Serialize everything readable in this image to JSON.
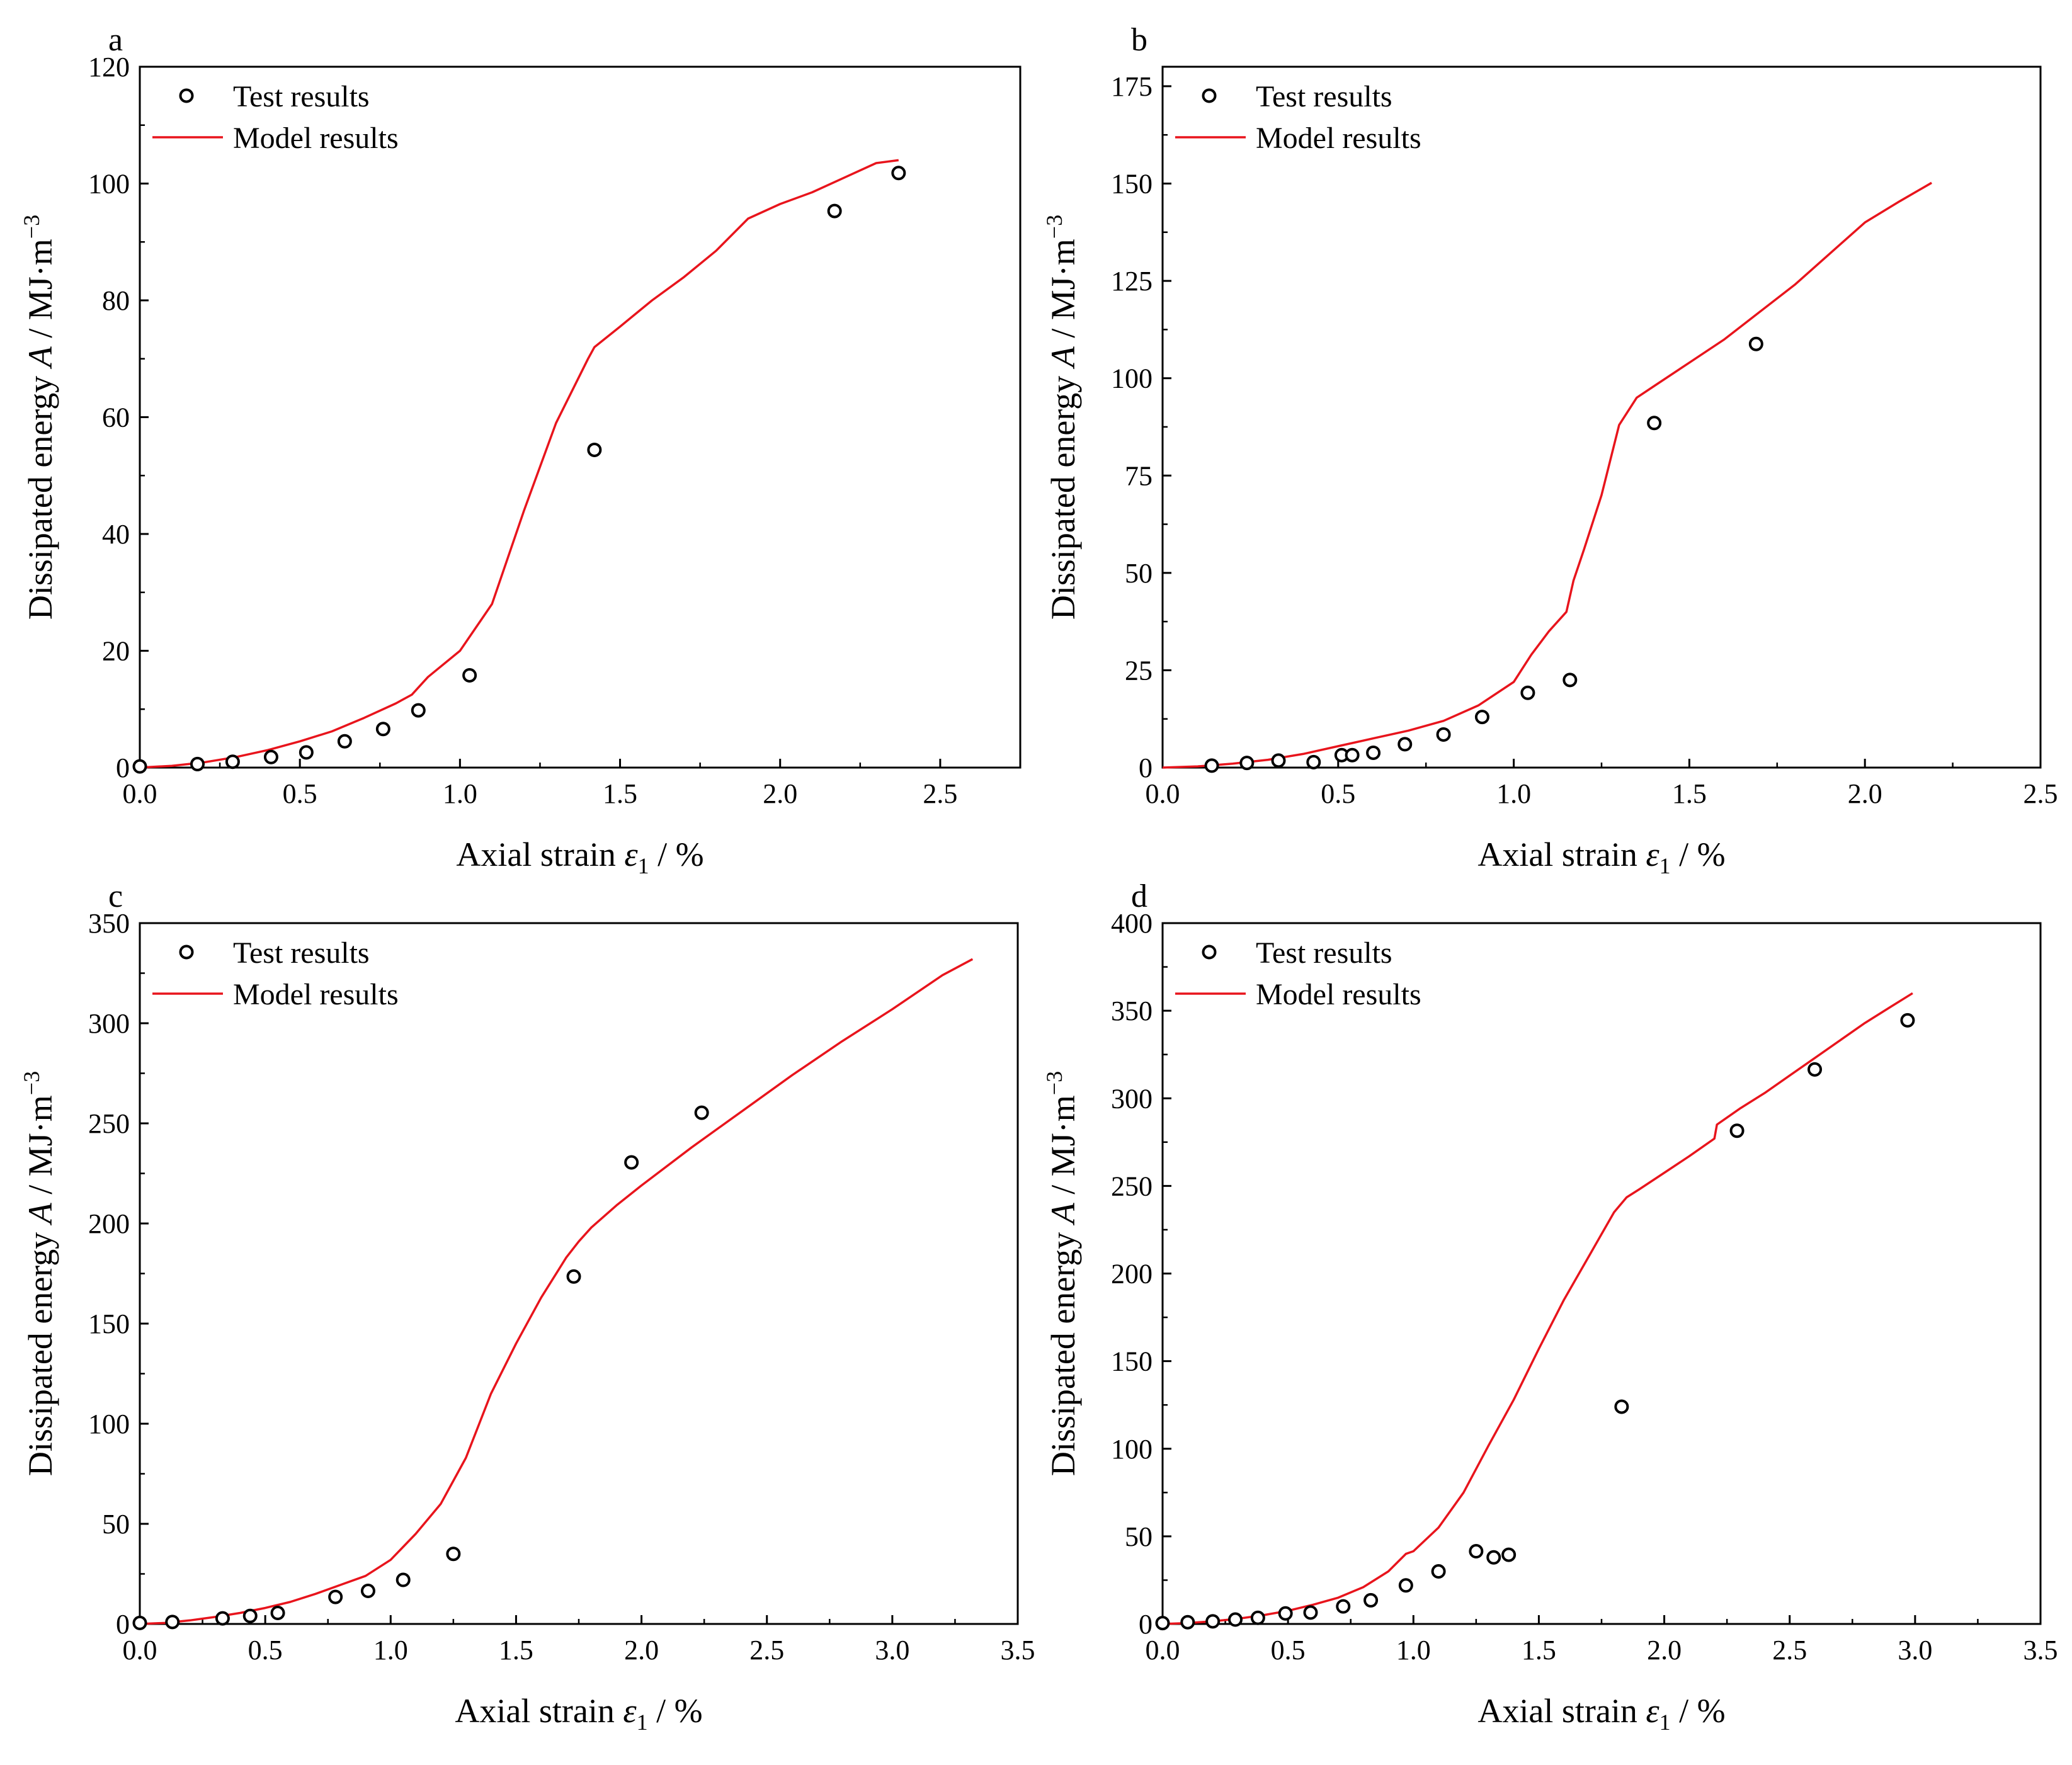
{
  "figure": {
    "axis_xlabel_main": "Axial strain ",
    "axis_xlabel_symbol": "ε",
    "axis_xlabel_sub": "1",
    "axis_xlabel_unit": " / %",
    "axis_ylabel_main": "Dissipated energy ",
    "axis_ylabel_symbol": "A",
    "axis_ylabel_unit": " / MJ·m",
    "axis_ylabel_sup": "−3",
    "legend_test": "Test results",
    "legend_model": "Model results",
    "model_color": "#e8141c",
    "marker_color": "#000000"
  },
  "chart_data": [
    {
      "panel": "a",
      "type": "line",
      "xlim": [
        0,
        2.75
      ],
      "ylim": [
        0,
        120
      ],
      "xticks": [
        0.0,
        0.5,
        1.0,
        1.5,
        2.0,
        2.5
      ],
      "xtick_labels": [
        "0.0",
        "0.5",
        "1.0",
        "1.5",
        "2.0",
        "2.5"
      ],
      "yticks": [
        0,
        20,
        40,
        60,
        80,
        100,
        120
      ],
      "ytick_labels": [
        "0",
        "20",
        "40",
        "60",
        "80",
        "100",
        "120"
      ],
      "legend_position": "top-left",
      "series": [
        {
          "name": "Test results",
          "kind": "scatter",
          "x": [
            0.0,
            0.18,
            0.29,
            0.41,
            0.52,
            0.64,
            0.76,
            0.87,
            1.03,
            1.42,
            2.17,
            2.37
          ],
          "y": [
            0.2,
            0.6,
            1.0,
            1.8,
            2.6,
            4.5,
            6.6,
            9.8,
            15.8,
            54.4,
            95.3,
            101.8
          ]
        },
        {
          "name": "Model results",
          "kind": "line",
          "x": [
            0.0,
            0.1,
            0.2,
            0.3,
            0.4,
            0.5,
            0.6,
            0.7,
            0.8,
            0.85,
            0.9,
            1.0,
            1.1,
            1.2,
            1.3,
            1.4,
            1.42,
            1.5,
            1.6,
            1.7,
            1.8,
            1.9,
            2.0,
            2.1,
            2.2,
            2.3,
            2.37
          ],
          "y": [
            0.0,
            0.3,
            0.9,
            1.8,
            3.0,
            4.5,
            6.2,
            8.5,
            11.0,
            12.5,
            15.5,
            20.0,
            28.0,
            44.0,
            59.0,
            70.0,
            72.0,
            75.5,
            80.0,
            84.0,
            88.5,
            94.0,
            96.5,
            98.5,
            101.0,
            103.5,
            104.0
          ]
        }
      ]
    },
    {
      "panel": "b",
      "type": "line",
      "xlim": [
        0,
        2.5
      ],
      "ylim": [
        0,
        180
      ],
      "xticks": [
        0.0,
        0.5,
        1.0,
        1.5,
        2.0,
        2.5
      ],
      "xtick_labels": [
        "0.0",
        "0.5",
        "1.0",
        "1.5",
        "2.0",
        "2.5"
      ],
      "yticks": [
        0,
        25,
        50,
        75,
        100,
        125,
        150,
        175
      ],
      "ytick_labels": [
        "0",
        "25",
        "50",
        "75",
        "100",
        "125",
        "150",
        "175"
      ],
      "legend_position": "top-left",
      "series": [
        {
          "name": "Test results",
          "kind": "scatter",
          "x": [
            0.14,
            0.24,
            0.33,
            0.43,
            0.51,
            0.54,
            0.6,
            0.69,
            0.8,
            0.91,
            1.04,
            1.16,
            1.4,
            1.69
          ],
          "y": [
            0.5,
            1.2,
            1.8,
            1.4,
            3.2,
            3.2,
            3.8,
            6.0,
            8.5,
            13.0,
            19.2,
            22.5,
            88.5,
            108.8
          ]
        },
        {
          "name": "Model results",
          "kind": "line",
          "x": [
            0.0,
            0.1,
            0.2,
            0.3,
            0.4,
            0.5,
            0.6,
            0.7,
            0.8,
            0.9,
            1.0,
            1.05,
            1.1,
            1.15,
            1.17,
            1.2,
            1.25,
            1.3,
            1.35,
            1.4,
            1.5,
            1.6,
            1.7,
            1.8,
            1.9,
            2.0,
            2.1,
            2.19
          ],
          "y": [
            0.0,
            0.3,
            1.0,
            2.0,
            3.5,
            5.5,
            7.5,
            9.5,
            12.0,
            16.0,
            22.0,
            29.0,
            35.0,
            40.0,
            48.0,
            56.0,
            70.0,
            88.0,
            95.0,
            98.0,
            104.0,
            110.0,
            117.0,
            124.0,
            132.0,
            140.0,
            145.5,
            150.2
          ]
        }
      ]
    },
    {
      "panel": "c",
      "type": "line",
      "xlim": [
        0,
        3.5
      ],
      "ylim": [
        0,
        350
      ],
      "xticks": [
        0.0,
        0.5,
        1.0,
        1.5,
        2.0,
        2.5,
        3.0,
        3.5
      ],
      "xtick_labels": [
        "0.0",
        "0.5",
        "1.0",
        "1.5",
        "2.0",
        "2.5",
        "3.0",
        "3.5"
      ],
      "yticks": [
        0,
        50,
        100,
        150,
        200,
        250,
        300,
        350
      ],
      "ytick_labels": [
        "0",
        "50",
        "100",
        "150",
        "200",
        "250",
        "300",
        "350"
      ],
      "legend_position": "top-left",
      "series": [
        {
          "name": "Test results",
          "kind": "scatter",
          "x": [
            0.0,
            0.13,
            0.33,
            0.44,
            0.55,
            0.78,
            0.91,
            1.05,
            1.25,
            1.73,
            1.96,
            2.24
          ],
          "y": [
            0.5,
            1.0,
            2.8,
            4.0,
            5.5,
            13.5,
            16.5,
            22.0,
            35.0,
            173.5,
            230.5,
            255.3
          ]
        },
        {
          "name": "Model results",
          "kind": "line",
          "x": [
            0.0,
            0.1,
            0.2,
            0.3,
            0.4,
            0.5,
            0.6,
            0.7,
            0.8,
            0.9,
            1.0,
            1.1,
            1.2,
            1.3,
            1.4,
            1.5,
            1.6,
            1.7,
            1.75,
            1.8,
            1.9,
            2.0,
            2.2,
            2.4,
            2.6,
            2.8,
            3.0,
            3.2,
            3.32
          ],
          "y": [
            0.0,
            0.5,
            1.8,
            3.5,
            5.5,
            8.0,
            11.0,
            15.0,
            19.5,
            24.0,
            32.0,
            45.0,
            60.0,
            83.0,
            115.0,
            140.0,
            163.0,
            183.0,
            191.0,
            198.0,
            209.0,
            219.0,
            238.0,
            256.0,
            274.0,
            291.0,
            307.0,
            324.0,
            332.0
          ]
        }
      ]
    },
    {
      "panel": "d",
      "type": "line",
      "xlim": [
        0,
        3.5
      ],
      "ylim": [
        0,
        400
      ],
      "xticks": [
        0.0,
        0.5,
        1.0,
        1.5,
        2.0,
        2.5,
        3.0,
        3.5
      ],
      "xtick_labels": [
        "0.0",
        "0.5",
        "1.0",
        "1.5",
        "2.0",
        "2.5",
        "3.0",
        "3.5"
      ],
      "yticks": [
        0,
        50,
        100,
        150,
        200,
        250,
        300,
        350,
        400
      ],
      "ytick_labels": [
        "0",
        "50",
        "100",
        "150",
        "200",
        "250",
        "300",
        "350",
        "400"
      ],
      "legend_position": "top-left",
      "series": [
        {
          "name": "Test results",
          "kind": "scatter",
          "x": [
            0.0,
            0.1,
            0.2,
            0.29,
            0.38,
            0.49,
            0.59,
            0.72,
            0.83,
            0.97,
            1.1,
            1.25,
            1.32,
            1.38,
            1.83,
            2.29,
            2.6,
            2.97
          ],
          "y": [
            0.5,
            1.0,
            1.5,
            2.5,
            3.5,
            6.0,
            6.5,
            10.0,
            13.5,
            22.0,
            30.0,
            41.5,
            38.0,
            39.5,
            124.0,
            281.5,
            316.5,
            344.5
          ]
        },
        {
          "name": "Model results",
          "kind": "line",
          "x": [
            0.0,
            0.1,
            0.2,
            0.3,
            0.4,
            0.5,
            0.6,
            0.7,
            0.8,
            0.9,
            0.97,
            1.0,
            1.1,
            1.2,
            1.3,
            1.4,
            1.5,
            1.6,
            1.7,
            1.8,
            1.85,
            1.9,
            2.0,
            2.1,
            2.2,
            2.21,
            2.3,
            2.4,
            2.5,
            2.6,
            2.7,
            2.8,
            2.9,
            2.99
          ],
          "y": [
            0.0,
            0.5,
            1.5,
            3.0,
            5.0,
            7.5,
            11.0,
            15.0,
            21.0,
            30.0,
            40.0,
            41.5,
            55.0,
            75.0,
            102.0,
            128.0,
            157.0,
            185.0,
            210.0,
            235.0,
            243.5,
            248.0,
            257.5,
            267.0,
            277.0,
            285.0,
            294.0,
            303.0,
            313.0,
            323.0,
            333.0,
            343.0,
            352.0,
            360.0
          ]
        }
      ]
    }
  ]
}
